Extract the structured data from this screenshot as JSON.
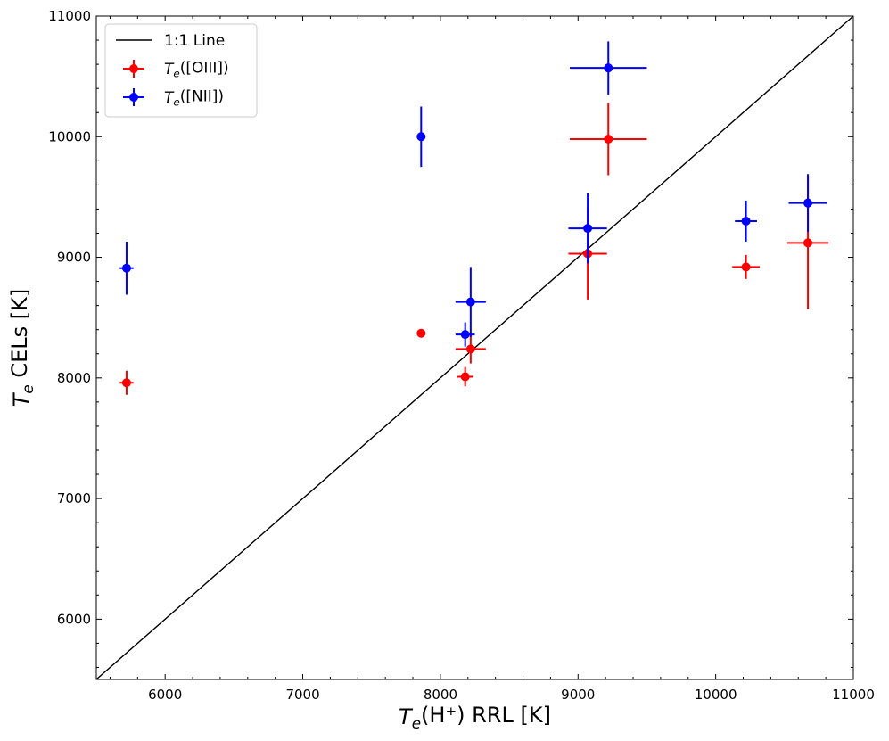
{
  "chart_data": {
    "type": "scatter",
    "xlabel": "T_e(H⁺) RRL [K]",
    "ylabel": "T_e CELs [K]",
    "xlim": [
      5500,
      11000
    ],
    "ylim": [
      5500,
      11000
    ],
    "x_ticks": [
      6000,
      7000,
      8000,
      9000,
      10000,
      11000
    ],
    "y_ticks": [
      6000,
      7000,
      8000,
      9000,
      10000,
      11000
    ],
    "x_tick_labels": [
      "6000",
      "7000",
      "8000",
      "9000",
      "10000",
      "11000"
    ],
    "y_tick_labels": [
      "6000",
      "7000",
      "8000",
      "9000",
      "10000",
      "11000"
    ],
    "legend_position": "top-left",
    "reference_line": {
      "name": "1:1 Line",
      "x": [
        5500,
        11000
      ],
      "y": [
        5500,
        11000
      ],
      "color": "#000000"
    },
    "series": [
      {
        "name": "T_e([OIII])",
        "color": "#ff0000",
        "points": [
          {
            "x": 5720,
            "y": 7960,
            "xerr": 50,
            "yerr": 100
          },
          {
            "x": 7860,
            "y": 8370,
            "xerr": 15,
            "yerr": 30
          },
          {
            "x": 8180,
            "y": 8010,
            "xerr": 60,
            "yerr": 80
          },
          {
            "x": 8220,
            "y": 8240,
            "xerr": 110,
            "yerr": 120
          },
          {
            "x": 9070,
            "y": 9030,
            "xerr": 140,
            "yerr": 380
          },
          {
            "x": 9220,
            "y": 9980,
            "xerr": 280,
            "yerr": 300
          },
          {
            "x": 10220,
            "y": 8920,
            "xerr": 100,
            "yerr": 100
          },
          {
            "x": 10670,
            "y": 9120,
            "xerr": 150,
            "yerr": 550
          }
        ]
      },
      {
        "name": "T_e([NII])",
        "color": "#0000ff",
        "points": [
          {
            "x": 5720,
            "y": 8910,
            "xerr": 50,
            "yerr": 220
          },
          {
            "x": 7860,
            "y": 10000,
            "xerr": 10,
            "yerr": 250
          },
          {
            "x": 8180,
            "y": 8360,
            "xerr": 70,
            "yerr": 100
          },
          {
            "x": 8220,
            "y": 8630,
            "xerr": 110,
            "yerr": 290
          },
          {
            "x": 9070,
            "y": 9240,
            "xerr": 140,
            "yerr": 290
          },
          {
            "x": 9220,
            "y": 10570,
            "xerr": 280,
            "yerr": 220
          },
          {
            "x": 10220,
            "y": 9300,
            "xerr": 80,
            "yerr": 170
          },
          {
            "x": 10670,
            "y": 9450,
            "xerr": 140,
            "yerr": 240
          }
        ]
      }
    ]
  }
}
